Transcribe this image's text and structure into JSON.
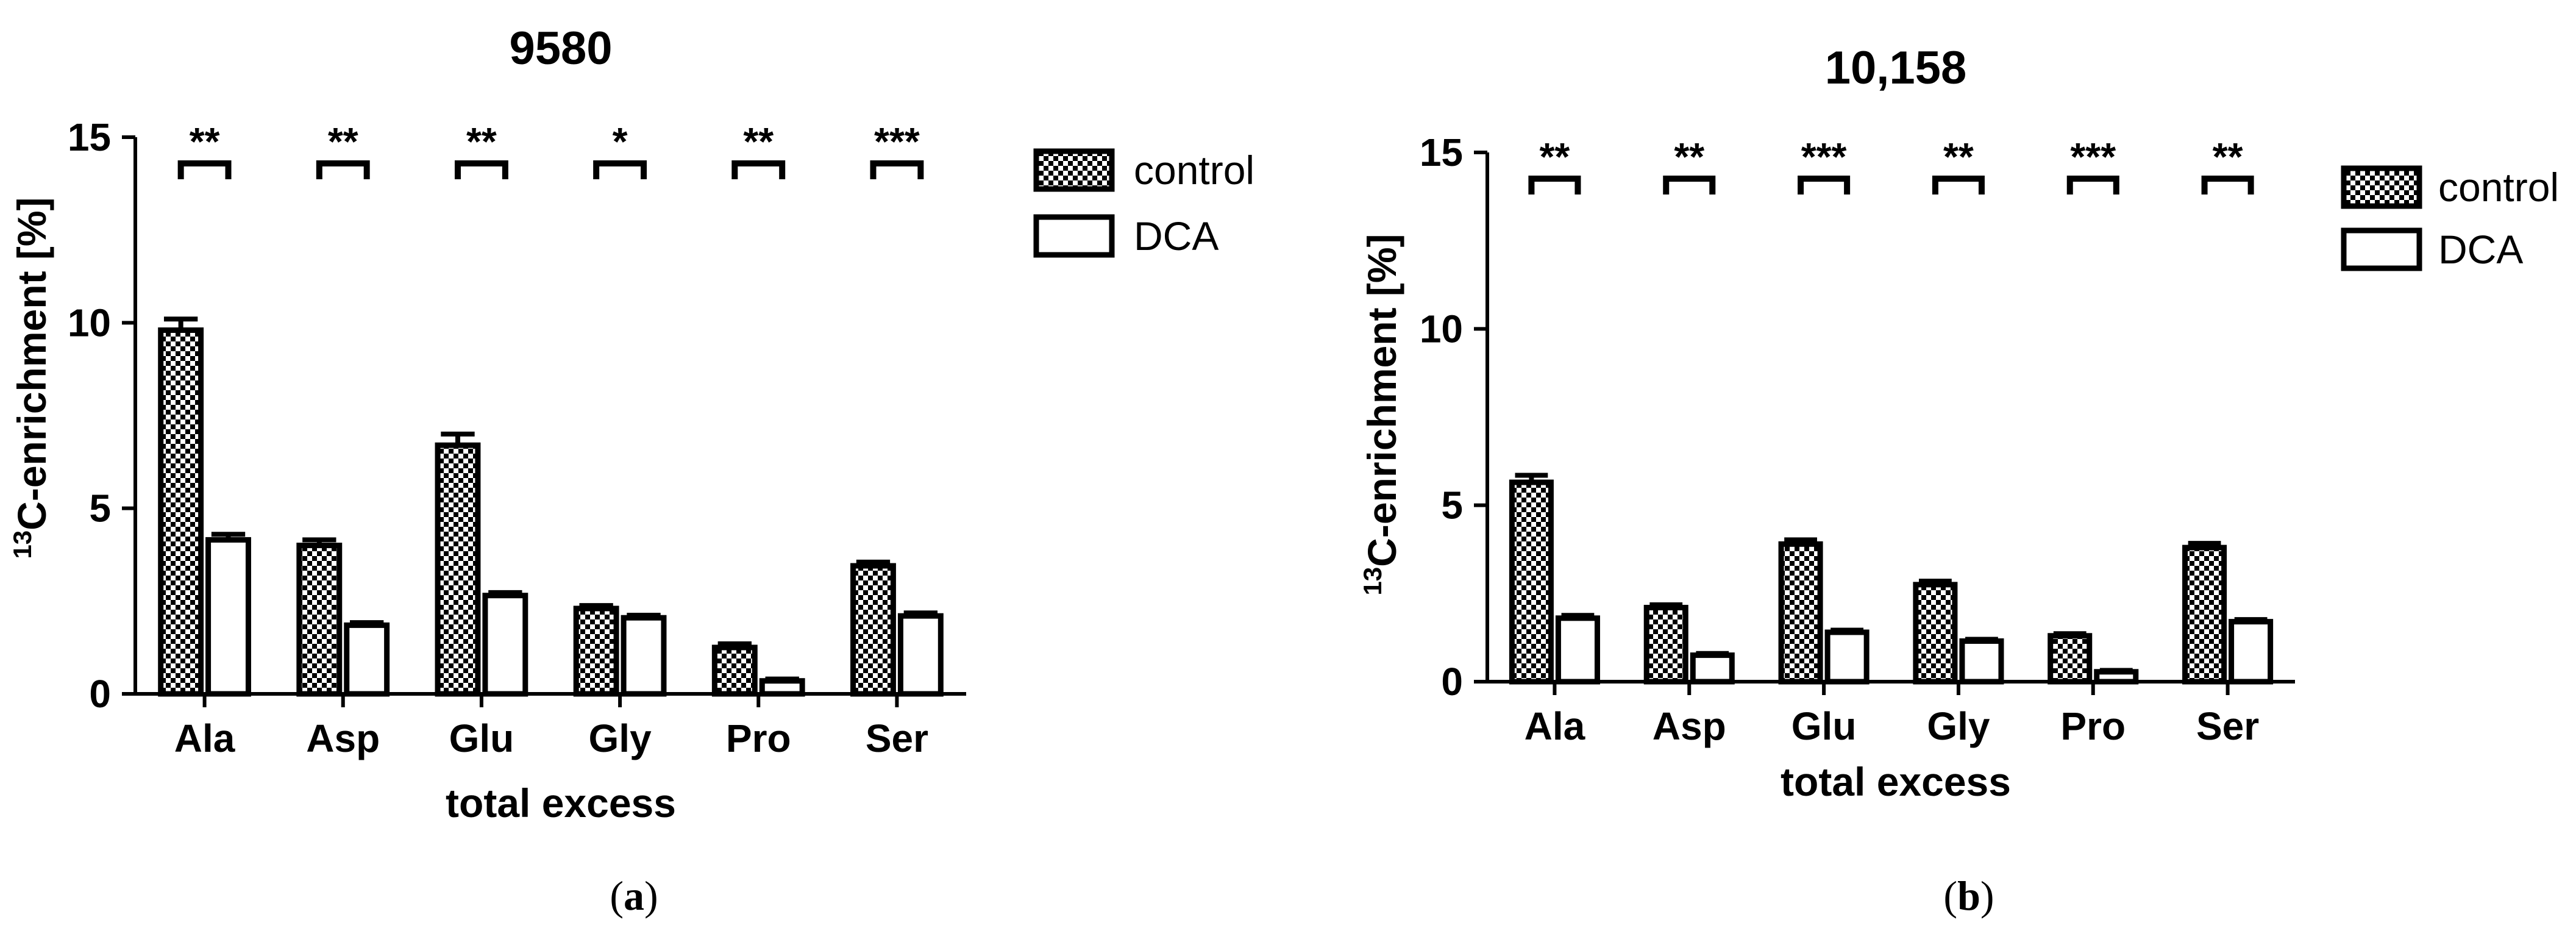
{
  "colors": {
    "axis": "#000000",
    "control_fill": "checkered",
    "dca_fill": "#ffffff"
  },
  "chart_data": [
    {
      "type": "bar",
      "title": "9580",
      "panel_label": "a",
      "xlabel": "total excess",
      "ylabel_sup": "13",
      "ylabel": "C-enrichment [%]",
      "ylim": [
        0,
        15
      ],
      "yticks": [
        "0",
        "5",
        "10",
        "15"
      ],
      "categories": [
        "Ala",
        "Asp",
        "Glu",
        "Gly",
        "Pro",
        "Ser"
      ],
      "series": [
        {
          "name": "control",
          "values": [
            9.8,
            4.0,
            6.7,
            2.3,
            1.25,
            3.45
          ],
          "errors": [
            0.3,
            0.15,
            0.3,
            0.08,
            0.1,
            0.1
          ]
        },
        {
          "name": "DCA",
          "values": [
            4.15,
            1.85,
            2.65,
            2.05,
            0.35,
            2.1
          ],
          "errors": [
            0.15,
            0.07,
            0.08,
            0.07,
            0.05,
            0.08
          ]
        }
      ],
      "significance": [
        "**",
        "**",
        "**",
        "*",
        "**",
        "***"
      ],
      "legend_position": "right"
    },
    {
      "type": "bar",
      "title": "10,158",
      "panel_label": "b",
      "xlabel": "total excess",
      "ylabel_sup": "13",
      "ylabel": "C-enrichment [%]",
      "ylim": [
        0,
        15
      ],
      "yticks": [
        "0",
        "5",
        "10",
        "15"
      ],
      "categories": [
        "Ala",
        "Asp",
        "Glu",
        "Gly",
        "Pro",
        "Ser"
      ],
      "series": [
        {
          "name": "control",
          "values": [
            5.65,
            2.1,
            3.9,
            2.75,
            1.3,
            3.8
          ],
          "errors": [
            0.2,
            0.08,
            0.12,
            0.1,
            0.06,
            0.12
          ]
        },
        {
          "name": "DCA",
          "values": [
            1.8,
            0.75,
            1.4,
            1.15,
            0.28,
            1.7
          ],
          "errors": [
            0.08,
            0.05,
            0.06,
            0.05,
            0.04,
            0.06
          ]
        }
      ],
      "significance": [
        "**",
        "**",
        "***",
        "**",
        "***",
        "**"
      ],
      "legend_position": "right"
    }
  ]
}
